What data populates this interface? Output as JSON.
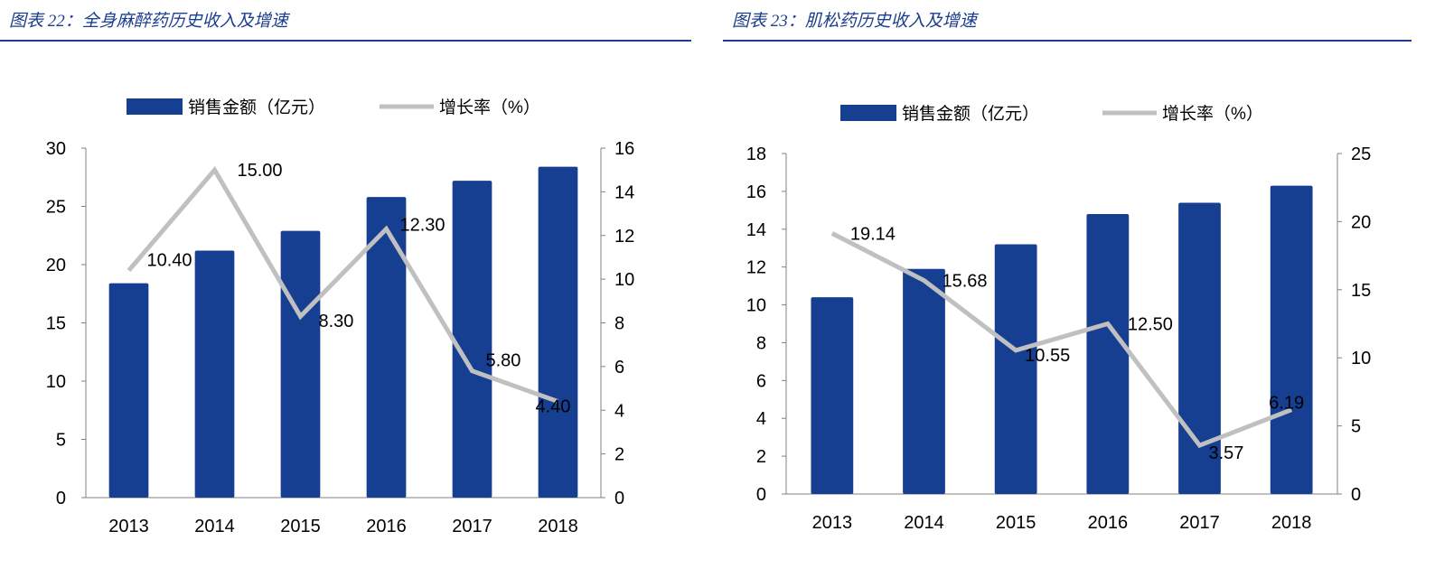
{
  "chart_data": [
    {
      "type": "bar+line",
      "title": "图表 22：全身麻醉药历史收入及增速",
      "categories": [
        "2013",
        "2014",
        "2015",
        "2016",
        "2017",
        "2018"
      ],
      "series": [
        {
          "name": "销售金额（亿元）",
          "type": "bar",
          "axis": "left",
          "color": "#163f92",
          "values": [
            18.4,
            21.2,
            22.9,
            25.8,
            27.2,
            28.4
          ]
        },
        {
          "name": "增长率（%）",
          "type": "line",
          "axis": "right",
          "color": "#c0c0c0",
          "values": [
            10.4,
            15.0,
            8.3,
            12.3,
            5.8,
            4.4
          ],
          "labels": [
            "10.40",
            "15.00",
            "8.30",
            "12.30",
            "5.80",
            "4.40"
          ]
        }
      ],
      "y_left": {
        "range": [
          0,
          30
        ],
        "ticks": [
          "0",
          "5",
          "10",
          "15",
          "20",
          "25",
          "30"
        ]
      },
      "y_right": {
        "range": [
          0,
          16
        ],
        "ticks": [
          "0",
          "2",
          "4",
          "6",
          "8",
          "10",
          "12",
          "14",
          "16"
        ]
      },
      "legend": "top",
      "grid": false
    },
    {
      "type": "bar+line",
      "title": "图表 23：肌松药历史收入及增速",
      "categories": [
        "2013",
        "2014",
        "2015",
        "2016",
        "2017",
        "2018"
      ],
      "series": [
        {
          "name": "销售金额（亿元）",
          "type": "bar",
          "axis": "left",
          "color": "#163f92",
          "values": [
            10.4,
            11.9,
            13.2,
            14.8,
            15.4,
            16.3
          ]
        },
        {
          "name": "增长率（%）",
          "type": "line",
          "axis": "right",
          "color": "#c0c0c0",
          "values": [
            19.14,
            15.68,
            10.55,
            12.5,
            3.57,
            6.19
          ],
          "labels": [
            "19.14",
            "15.68",
            "10.55",
            "12.50",
            "3.57",
            "6.19"
          ]
        }
      ],
      "y_left": {
        "range": [
          0,
          18
        ],
        "ticks": [
          "0",
          "2",
          "4",
          "6",
          "8",
          "10",
          "12",
          "14",
          "16",
          "18"
        ]
      },
      "y_right": {
        "range": [
          0,
          25
        ],
        "ticks": [
          "0",
          "5",
          "10",
          "15",
          "20",
          "25"
        ]
      },
      "legend": "top",
      "grid": false
    }
  ]
}
